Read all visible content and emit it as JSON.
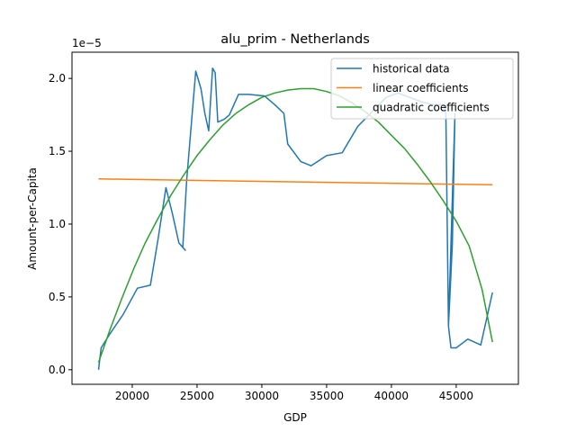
{
  "chart_data": {
    "type": "line",
    "title": "alu_prim - Netherlands",
    "xlabel": "GDP",
    "ylabel": "Amount-per-Capita",
    "y_offset_label": "1e−5",
    "xlim": [
      15350,
      49800
    ],
    "ylim": [
      -0.1,
      2.18
    ],
    "x_ticks": [
      20000,
      25000,
      30000,
      35000,
      40000,
      45000
    ],
    "x_tick_labels": [
      "20000",
      "25000",
      "30000",
      "35000",
      "40000",
      "45000"
    ],
    "y_ticks": [
      0.0,
      0.5,
      1.0,
      1.5,
      2.0
    ],
    "y_tick_labels": [
      "0.0",
      "0.5",
      "1.0",
      "1.5",
      "2.0"
    ],
    "grid": false,
    "legend_position": "top-right",
    "series": [
      {
        "name": "historical data",
        "color": "#1f77b4",
        "x": [
          17400,
          17600,
          18300,
          19300,
          20400,
          21400,
          22000,
          22600,
          23100,
          23600,
          24100,
          23900,
          24200,
          24900,
          25300,
          25600,
          25900,
          26200,
          26400,
          26600,
          27100,
          27500,
          28200,
          29000,
          30200,
          31000,
          31700,
          32000,
          33000,
          33800,
          35000,
          36200,
          37400,
          38500,
          39600,
          40500,
          41400,
          42300,
          43200,
          44100,
          44200,
          44400,
          44700,
          44900,
          44400,
          44600,
          45000,
          45900,
          46900,
          47800
        ],
        "y": [
          0.0,
          0.15,
          0.25,
          0.38,
          0.56,
          0.58,
          0.9,
          1.25,
          1.07,
          0.87,
          0.82,
          0.84,
          1.3,
          2.05,
          1.93,
          1.76,
          1.64,
          2.07,
          2.04,
          1.7,
          1.72,
          1.75,
          1.89,
          1.89,
          1.88,
          1.82,
          1.76,
          1.55,
          1.43,
          1.4,
          1.47,
          1.49,
          1.67,
          1.77,
          1.87,
          1.9,
          1.87,
          1.84,
          1.82,
          1.82,
          1.76,
          0.3,
          0.86,
          1.76,
          0.3,
          0.15,
          0.15,
          0.21,
          0.17,
          0.53
        ]
      },
      {
        "name": "linear coefficients",
        "color": "#ff7f0e",
        "x": [
          17400,
          47800
        ],
        "y": [
          1.31,
          1.27
        ]
      },
      {
        "name": "quadratic coefficients",
        "color": "#2ca02c",
        "x": [
          17400,
          18300,
          19200,
          20100,
          21000,
          22000,
          23000,
          24000,
          25000,
          26000,
          27000,
          28000,
          29000,
          30000,
          31000,
          32000,
          33000,
          34000,
          35000,
          36000,
          37000,
          38000,
          39000,
          40000,
          41000,
          42000,
          43000,
          44000,
          45000,
          46000,
          47000,
          47800
        ],
        "y": [
          0.05,
          0.28,
          0.49,
          0.69,
          0.87,
          1.04,
          1.2,
          1.34,
          1.47,
          1.58,
          1.68,
          1.76,
          1.82,
          1.87,
          1.9,
          1.92,
          1.93,
          1.93,
          1.91,
          1.88,
          1.83,
          1.77,
          1.7,
          1.61,
          1.52,
          1.41,
          1.29,
          1.16,
          1.02,
          0.85,
          0.55,
          0.19
        ]
      }
    ]
  }
}
